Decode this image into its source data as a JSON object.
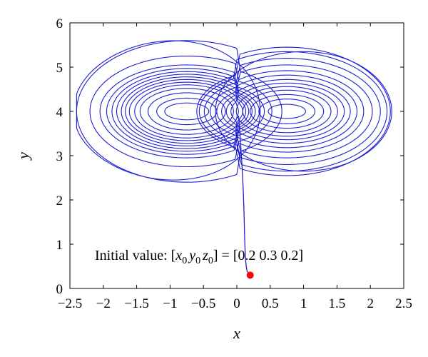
{
  "chart_data": {
    "type": "line",
    "title": "",
    "xlabel": "x",
    "ylabel": "y",
    "xlim": [
      -2.5,
      2.5
    ],
    "ylim": [
      0,
      6
    ],
    "x_ticks": [
      "−2.5",
      "−2",
      "−1.5",
      "−1",
      "−0.5",
      "0",
      "0.5",
      "1",
      "1.5",
      "2",
      "2.5"
    ],
    "y_ticks": [
      "0",
      "1",
      "2",
      "3",
      "4",
      "5",
      "6"
    ],
    "x_tick_values": [
      -2.5,
      -2,
      -1.5,
      -1,
      -0.5,
      0,
      0.5,
      1,
      1.5,
      2,
      2.5
    ],
    "y_tick_values": [
      0,
      1,
      2,
      3,
      4,
      5,
      6
    ],
    "grid": false,
    "series_color": "#1f1fd1",
    "marker_color": "#ff0000",
    "initial_point": {
      "x": 0.2,
      "y": 0.3
    },
    "attractor": {
      "center_y": 4.0,
      "left_lobe_center_x": -0.75,
      "right_lobe_center_x": 0.75,
      "x_extent": [
        -2.4,
        2.35
      ],
      "y_extent": [
        2.4,
        5.6
      ]
    },
    "annotation": {
      "prefix": "Initial value: [",
      "v1": "x",
      "s1": "0",
      "v2": "y",
      "s2": "0",
      "v3": "z",
      "s3": "0",
      "suffix": "] = [0.2  0.3  0.2]"
    }
  }
}
